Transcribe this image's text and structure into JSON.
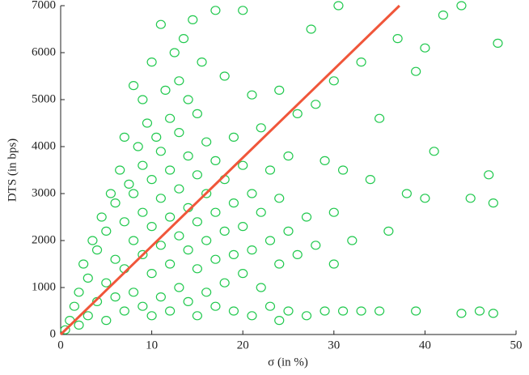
{
  "chart_data": {
    "type": "scatter",
    "x_label": "σ (in %)",
    "y_label": "DTS (in bps)",
    "xlim": [
      0,
      50
    ],
    "ylim": [
      0,
      7000
    ],
    "xticks": [
      0,
      10,
      20,
      30,
      40,
      50
    ],
    "yticks": [
      0,
      1000,
      2000,
      3000,
      4000,
      5000,
      6000,
      7000
    ],
    "series": [
      {
        "color": "#22c94f",
        "x": [
          0.5,
          1,
          1.5,
          2,
          2,
          2.5,
          3,
          3,
          3.5,
          4,
          4,
          4.5,
          5,
          5,
          5,
          5.5,
          6,
          6,
          6,
          6.5,
          7,
          7,
          7,
          7,
          7.5,
          8,
          8,
          8,
          8,
          8.5,
          9,
          9,
          9,
          9,
          9,
          9.5,
          10,
          10,
          10,
          10,
          10,
          10.5,
          11,
          11,
          11,
          11,
          11,
          11.5,
          12,
          12,
          12,
          12,
          12,
          12.5,
          13,
          13,
          13,
          13,
          13,
          13.5,
          14,
          14,
          14,
          14,
          14,
          14.5,
          15,
          15,
          15,
          15,
          15,
          15.5,
          16,
          16,
          16,
          16,
          17,
          17,
          17,
          17,
          17,
          18,
          18,
          18,
          18,
          19,
          19,
          19,
          19,
          20,
          20,
          20,
          20,
          21,
          21,
          21,
          21,
          22,
          22,
          22,
          23,
          23,
          23,
          24,
          24,
          24,
          24,
          25,
          25,
          25,
          26,
          26,
          27,
          27,
          27.5,
          28,
          28,
          29,
          29,
          30,
          30,
          30,
          30.5,
          31,
          31,
          32,
          33,
          33,
          34,
          35,
          35,
          36,
          37,
          38,
          39,
          39,
          40,
          40,
          41,
          42,
          44,
          44,
          45,
          46,
          47,
          47.5,
          47.5,
          48
        ],
        "values": [
          100,
          300,
          600,
          200,
          900,
          1500,
          400,
          1200,
          2000,
          700,
          1800,
          2500,
          300,
          1100,
          2200,
          3000,
          800,
          1600,
          2800,
          3500,
          500,
          1400,
          2400,
          4200,
          3200,
          900,
          2000,
          3000,
          5300,
          4000,
          600,
          1700,
          2600,
          3600,
          5000,
          4500,
          400,
          1300,
          2300,
          3300,
          5800,
          4200,
          800,
          1900,
          2900,
          3900,
          6600,
          5200,
          500,
          1500,
          2500,
          3500,
          4600,
          6000,
          1000,
          2100,
          3100,
          4300,
          5400,
          6300,
          700,
          1800,
          2700,
          3800,
          5000,
          6700,
          400,
          1400,
          2400,
          3400,
          4700,
          5800,
          900,
          2000,
          3000,
          4100,
          600,
          1600,
          2600,
          3700,
          6900,
          1100,
          2200,
          3300,
          5500,
          500,
          1700,
          2800,
          4200,
          1300,
          2300,
          3600,
          6900,
          400,
          1800,
          3000,
          5100,
          1000,
          2600,
          4400,
          600,
          2000,
          3500,
          300,
          1500,
          2900,
          5200,
          500,
          2200,
          3800,
          1700,
          4700,
          400,
          2500,
          6500,
          1900,
          4900,
          500,
          3700,
          1500,
          2600,
          5400,
          7000,
          500,
          3500,
          2000,
          5800,
          500,
          3300,
          4600,
          500,
          2200,
          6300,
          3000,
          500,
          5600,
          2900,
          6100,
          3900,
          6800,
          7000,
          450,
          2900,
          500,
          3400,
          2800,
          450,
          6200
        ]
      },
      {
        "type": "line",
        "color": "#f0563a",
        "x": [
          0,
          37.2
        ],
        "values": [
          0,
          7000
        ]
      }
    ]
  }
}
